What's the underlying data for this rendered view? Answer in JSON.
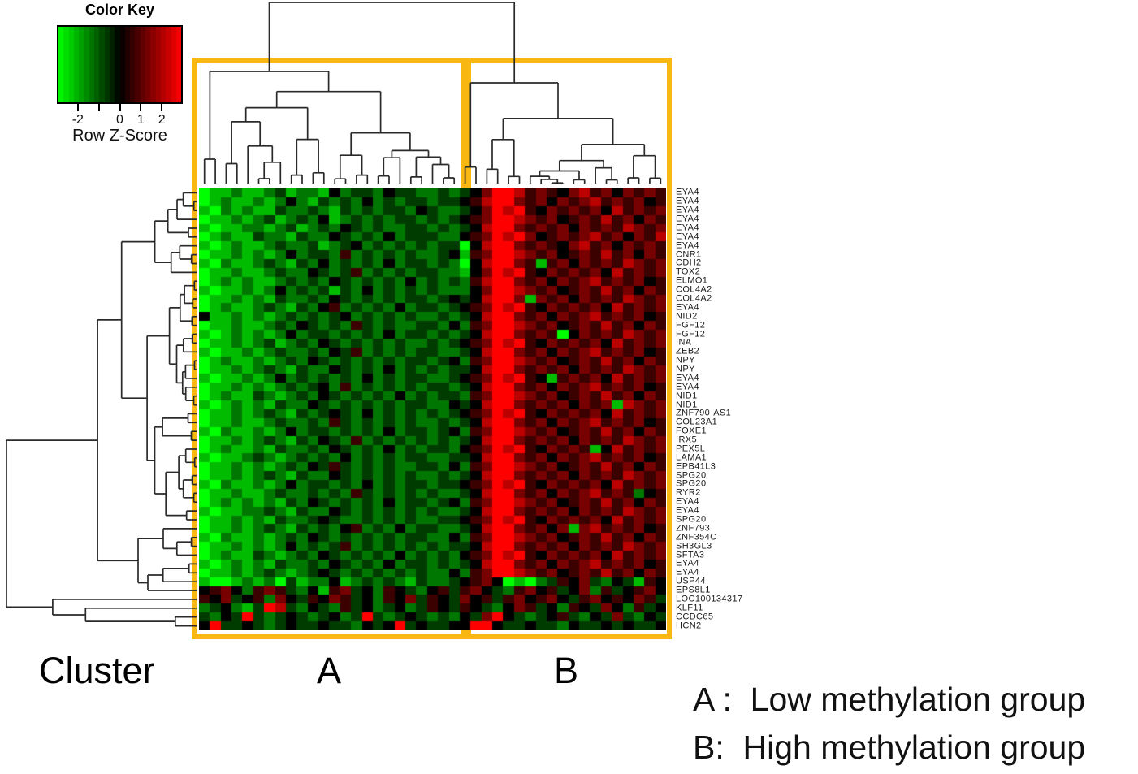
{
  "color_key": {
    "title": "Color Key",
    "axis_label": "Row Z-Score",
    "z_range": [
      -3,
      3
    ],
    "ticks": [
      {
        "z": -2,
        "label": "-2"
      },
      {
        "z": -1,
        "label": ""
      },
      {
        "z": 0,
        "label": "0"
      },
      {
        "z": 1,
        "label": "1"
      },
      {
        "z": 2,
        "label": "2"
      }
    ],
    "bands": 24
  },
  "bottom_labels": {
    "row_header": "Cluster",
    "group_a": "A",
    "group_b": "B"
  },
  "legend": {
    "line_a": "A :  Low methylation group",
    "line_b": "B:  High methylation group"
  },
  "colors": {
    "background": "#FFFFFF",
    "box_outline": "#F8B811",
    "dendrogram_line": "#2A2A2A",
    "low_color": "#00FF00",
    "mid_color": "#000000",
    "high_color": "#FF0000",
    "label_text": "#1A1A1A"
  },
  "chart_data": {
    "type": "heatmap",
    "value_label": "Row Z-Score",
    "colorscale": "green-black-red",
    "zlim": [
      -3,
      3
    ],
    "column_clusters": [
      {
        "name": "A",
        "meaning": "Low methylation group",
        "n_columns": 24
      },
      {
        "name": "B",
        "meaning": "High methylation group",
        "n_columns": 19
      }
    ],
    "rows": [
      "EYA4",
      "EYA4",
      "EYA4",
      "EYA4",
      "EYA4",
      "EYA4",
      "EYA4",
      "CNR1",
      "CDH2",
      "TOX2",
      "ELMO1",
      "COL4A2",
      "COL4A2",
      "EYA4",
      "NID2",
      "FGF12",
      "FGF12",
      "INA",
      "ZEB2",
      "NPY",
      "NPY",
      "EYA4",
      "EYA4",
      "NID1",
      "NID1",
      "ZNF790-AS1",
      "COL23A1",
      "FOXE1",
      "IRX5",
      "PEX5L",
      "LAMA1",
      "EPB41L3",
      "SPG20",
      "SPG20",
      "RYR2",
      "EYA4",
      "EYA4",
      "SPG20",
      "ZNF793",
      "ZNF354C",
      "SH3GL3",
      "SFTA3",
      "EYA4",
      "EYA4",
      "USP44",
      "EPS8L1",
      "LOC100134317",
      "KLF11",
      "CCDC65",
      "HCN2"
    ],
    "z_levels": {
      "A": -3,
      "B": -2.2,
      "C": -1.4,
      "D": -0.7,
      "E": 0,
      "F": 0.7,
      "G": 1.4,
      "H": 2.2,
      "I": 3
    },
    "matrix_encoded": [
      "ABBCBBCDBCCBECDDCEDDCCDCDEGIIHFGFEGHFGEGFGF",
      "ABCBBCBCECBDCDCECDCDDCDDEFHIIGFGEGFGHFGFGEF",
      "BACBCBBDCCDCBDCDCDDCEDCCDEGIHIFEGFGFGEHFGFG",
      "ABBCBCDBCDCEBCDCDCDDCDCDEFGIIHGFGEFGFHFGEGF",
      "BABBCCBCDBCDCEDCDCCDDCDCDEHIIGFGFGEGFGFHGFG",
      "ABCBBDCCBDCCEDCDCECDDDCCEFGIHIGEFGFGHFGEGFH",
      "BABCBBCDCCDBCDECDCDCDCDDAEHIIGFGFEGHFGEGFGF",
      "ABBCBCBCECDDCFCDCDCDCCDEBFGIIHGFGEFGFHFGEGF",
      "BACBBCDCBDCECDCDCECDDCDCAEHIIGFBFGEGFGFHGFG",
      "ABBCBBCDCCEDCDFCDCDCDDCCBEGIHIFEGFGFGEHFGFG",
      "ABCBCBBCDCDCEDCDCDCECDCDCFHIIGFGEGFGHFGFGEF",
      "BABBCBCECDCDBDCECDCDCDCCCEGIIHGFGEFGFHFGEGF",
      "ABBCBCBDCCDCEDCDCDCDDCDEDEHIIGBGFGEGFGFHGFG",
      "ABCBBCDCBDCEFCDCDCECDDCDEFGIHIFEGFGFGEHFGFG",
      "EBBCBCBCDCDCDECDCDCDCCDCDEHIIGFGEGFGHFGFGEF",
      "ABBCBBCDCEDCDCFDCDCCDDCECFGIIHGFGEFGFHFGEGF",
      "BABCBCBCECDDCDCDCECDDCDCDEHIIGFGFAEGFGFHGFG",
      "ABBCBCDBCDCEDCDCDCDCCDCDEFGIHIFEGFGFGEHFGFG",
      "BABBCBCDCCDCEDFCDCDCDDCCDEHIIGFGEGFGHFGFGEF",
      "ABCBBCBCDCEDCDCDCDCDDCDECFGIIHGFGEFGFHFGEGF",
      "ABBCBCDCBDCCEDCDCECDCDCDDEHIIGFGFGEGFGFHGFG",
      "BABBCBCECDCDCDCECDCDDCCDEFGIHIFEBFGFGEHFGFG",
      "ABBCBCBCDCDECFCDCDCDCDDCDEHIIGFGEGFGHFGFGEF",
      "ABCBBDCBCDCEDCDCDCECDCDDCFGIIHGFGEFGFHFGEGF",
      "BABCBCBDCCEDCDCDCDCDDCCEDEHIIGFGFGEGFGBHGFG",
      "ABBCBCDCBDCDEDCECDCDCDCDEFGIHIFEGFGFGEHFGFG",
      "ABBCBBCDCCDCFDCDCDCDCCDCDEHIIGFGEGFGHFGFGEF",
      "BACBBCBCECDDCDCDCECDDCDECFGIIHGFGEFGFHFGEGF",
      "ABBCBCDCBDCEDCFCDCDCDCDCDEHIIGFGFGEGFGFHGFG",
      "ABCBBCBDCCDCEDCDCECDCDDCEFGIHIFEGFGFBEHFGFG",
      "BABBCDCBCDCDCECDCDCDDCCDDEHIIGFGEGFGHFGFGEF",
      "ABBCBCBCDCEDFDCDCDCCDDCECFGIIHGFGEFGFHFGEGF",
      "ABBCBCDCBDCCEDCDCDCDCCDCDEHIIGFGFGEGFGFHGFG",
      "BACBBCBCECDDCDCECDCDDCDDEFGIHIFEGFGFGEHFGFG",
      "ABBCBBCDCCDCDCFDCDCDCDCCDEHIIGFGEGFGHFGFCEF",
      "ABCBCBCBDCEDCDCDCECDDCDECFGIIHGFGEFGFHFGEGF",
      "BABBCCDCBDCCEDCDCDCDCDCCDEHIIGFGFGEGFGFHGFG",
      "ABBCBCBDCCDEDCCDCDCDCCDDEFGIHIFEGFGFGEHFGFG",
      "ABBCBCDCBDCDCEFCDCECDDCCDEHIIGFGEGBGHFGFGEF",
      "BACBBCBCDCEDCDCDCDCDDCCECFGIIHGFGEFGFHFGEGF",
      "ABBCBCBCECDCDFCDCDCDCDCDDEHIIGFGFGEGFGFHGFG",
      "ABCBBDCBCDCEDCDCDCECDCDCEFGIHIFEGFGFGEHFGFG",
      "BABCBCBDCCDCEDCDCECDDCDCDEHIIGFGEGFGHFGFGEF",
      "ABBCBCDCBCDEDCDCDCDCDCCECFGIIHGFGEFGFHFGEGF",
      "BAABCBCADBCCEBCDCDCBDCCDEFGEABACDFEGDCEDBFE",
      "EFGECFGFDCEBFGDECFEDCEFDFGEDCFGEFDEGCFDEFGE",
      "FEGDEFCGEDFEGFDECFEGDFEDGEFDFGEFGEDFGEFEGFD",
      "CDECBDIHDCEDCFDECDECDFEDFEDCEGFDECFEDGECFDE",
      "DCEDIDCDEDCDECDIDCDEDCDCEDGIEDCDEFDCEDGDCED",
      "EIDDEDCDEDDEDDCEDEIDEDDEEIIEDDEDDCEDDEDEDDE"
    ]
  }
}
